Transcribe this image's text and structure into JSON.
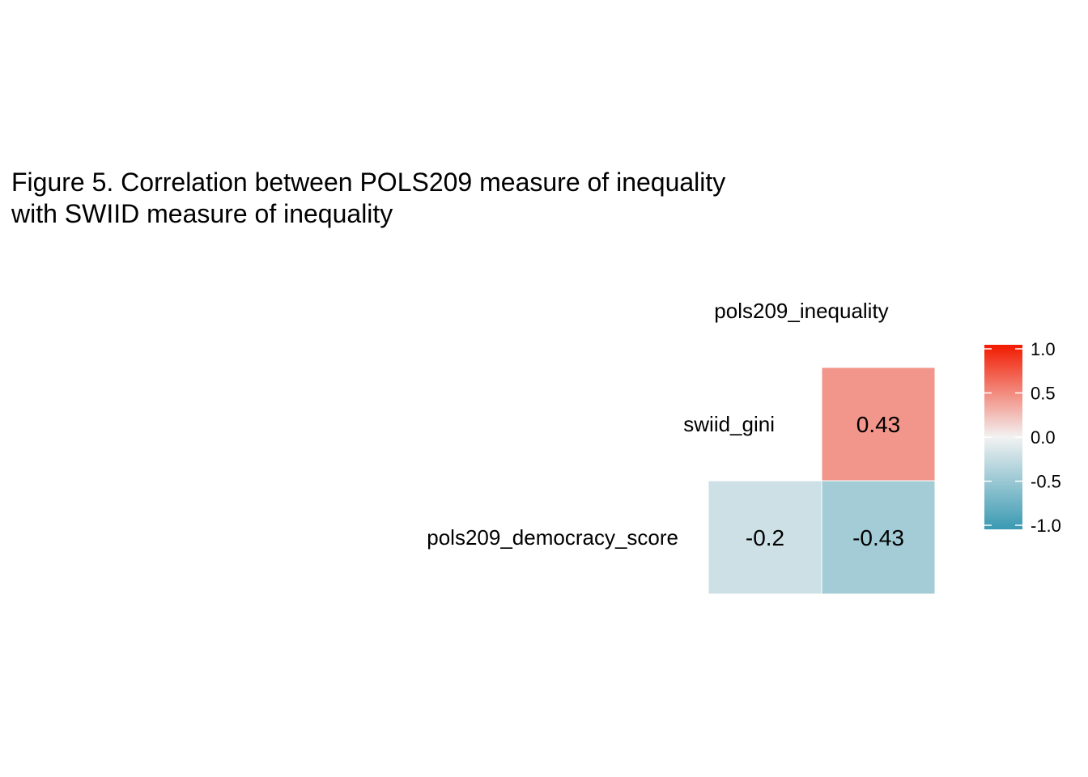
{
  "chart_data": {
    "type": "heatmap",
    "title": [
      "Figure 5. Correlation between POLS209 measure of inequality",
      "with SWIID measure of inequality"
    ],
    "x_categories": [
      "pols209_democracy_score",
      "pols209_inequality"
    ],
    "y_categories": [
      "swiid_gini",
      "pols209_democracy_score"
    ],
    "cells": [
      {
        "row": "swiid_gini",
        "col": "pols209_inequality",
        "value": 0.43,
        "label": "0.43"
      },
      {
        "row": "pols209_democracy_score",
        "col": "pols209_democracy_score",
        "value": -0.2,
        "label": "-0.2"
      },
      {
        "row": "pols209_democracy_score",
        "col": "pols209_inequality",
        "value": -0.43,
        "label": "-0.43"
      }
    ],
    "labels": {
      "top": "pols209_inequality",
      "rows": [
        "swiid_gini",
        "pols209_democracy_score"
      ]
    },
    "legend": {
      "range": [
        -1,
        1
      ],
      "ticks": [
        "1.0",
        "0.5",
        "0.0",
        "-0.5",
        "-1.0"
      ],
      "tick_values": [
        1.0,
        0.5,
        0.0,
        -0.5,
        -1.0
      ],
      "colors": {
        "low": "#3A9AB2",
        "mid": "#F2F2F2",
        "high": "#F21A00"
      },
      "placement": "right"
    }
  }
}
